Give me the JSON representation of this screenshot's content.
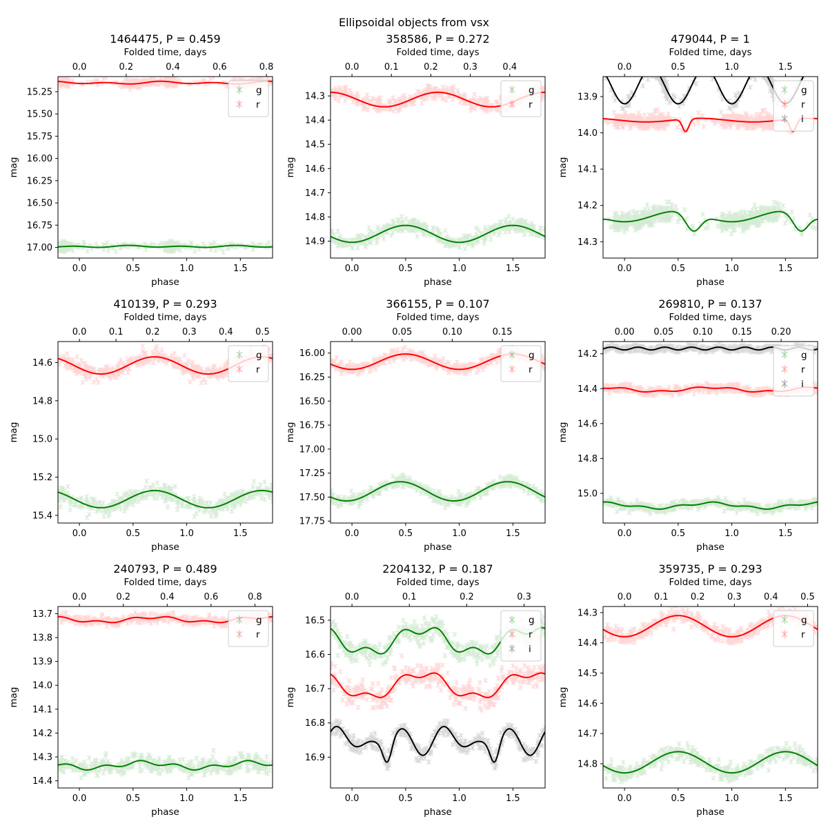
{
  "figure": {
    "title": "Ellipsoidal objects from vsx"
  },
  "chart_data": [
    {
      "type": "scatter",
      "title": "1464475, P = 0.459",
      "xlabel": "phase",
      "ylabel": "mag",
      "top_xlabel": "Folded time, days",
      "period": 0.459,
      "xlim": [
        -0.2,
        1.8
      ],
      "ylim": [
        17.12,
        15.08
      ],
      "yaxis": "inverted",
      "yticks": [
        15.25,
        15.5,
        15.75,
        16.0,
        16.25,
        16.5,
        16.75,
        17.0
      ],
      "ytick_labels": [
        "15.25",
        "15.50",
        "15.75",
        "16.00",
        "16.25",
        "16.50",
        "16.75",
        "17.00"
      ],
      "xticks": [
        0.0,
        0.5,
        1.0,
        1.5
      ],
      "xtick_labels": [
        "0.0",
        "0.5",
        "1.0",
        "1.5"
      ],
      "top_xticks": [
        0.0,
        0.2,
        0.4,
        0.6,
        0.8
      ],
      "top_xtick_labels": [
        "0.0",
        "0.2",
        "0.4",
        "0.6",
        "0.8"
      ],
      "legend": {
        "position": "top-right",
        "entries": [
          "g",
          "r"
        ]
      },
      "series": [
        {
          "name": "g",
          "color": "#008000",
          "mean": 16.99,
          "terms": [
            [
              0.005,
              1,
              0.0
            ],
            [
              0.008,
              2,
              1.2
            ]
          ],
          "noise": 0.02,
          "clusters": [
            [
              -0.2,
              -0.12,
              0.45
            ],
            [
              0.8,
              0.92,
              0.45
            ]
          ]
        },
        {
          "name": "r",
          "color": "#ff0000",
          "mean": 15.15,
          "terms": [
            [
              0.008,
              1,
              0.3
            ],
            [
              0.01,
              2,
              2.0
            ]
          ],
          "noise": 0.02,
          "clusters": [
            [
              0.42,
              0.7,
              0.55
            ],
            [
              -0.2,
              -0.1,
              0.4
            ]
          ]
        }
      ]
    },
    {
      "type": "scatter",
      "title": "358586, P = 0.272",
      "xlabel": "phase",
      "ylabel": "mag",
      "top_xlabel": "Folded time, days",
      "period": 0.272,
      "xlim": [
        -0.2,
        1.8
      ],
      "ylim": [
        14.97,
        14.22
      ],
      "yaxis": "inverted",
      "yticks": [
        14.3,
        14.4,
        14.5,
        14.6,
        14.7,
        14.8,
        14.9
      ],
      "ytick_labels": [
        "14.3",
        "14.4",
        "14.5",
        "14.6",
        "14.7",
        "14.8",
        "14.9"
      ],
      "xticks": [
        0.0,
        0.5,
        1.0,
        1.5
      ],
      "xtick_labels": [
        "0.0",
        "0.5",
        "1.0",
        "1.5"
      ],
      "top_xticks": [
        0.0,
        0.1,
        0.2,
        0.3,
        0.4
      ],
      "top_xtick_labels": [
        "0.0",
        "0.1",
        "0.2",
        "0.3",
        "0.4"
      ],
      "legend": {
        "position": "top-right",
        "entries": [
          "g",
          "r"
        ]
      },
      "series": [
        {
          "name": "g",
          "color": "#008000",
          "mean": 14.87,
          "terms": [
            [
              0.035,
              1,
              0.0
            ]
          ],
          "noise": 0.015,
          "clusters": []
        },
        {
          "name": "r",
          "color": "#ff0000",
          "mean": 14.315,
          "terms": [
            [
              0.03,
              1,
              0.3
            ]
          ],
          "noise": 0.015,
          "clusters": []
        }
      ]
    },
    {
      "type": "scatter",
      "title": "479044, P = 1",
      "xlabel": "phase",
      "ylabel": "mag",
      "top_xlabel": "Folded time, days",
      "period": 1,
      "xlim": [
        -0.2,
        1.8
      ],
      "ylim": [
        14.345,
        13.845
      ],
      "yaxis": "inverted",
      "yticks": [
        13.9,
        14.0,
        14.1,
        14.2,
        14.3
      ],
      "ytick_labels": [
        "13.9",
        "14.0",
        "14.1",
        "14.2",
        "14.3"
      ],
      "xticks": [
        0.0,
        0.5,
        1.0,
        1.5
      ],
      "xtick_labels": [
        "0.0",
        "0.5",
        "1.0",
        "1.5"
      ],
      "top_xticks": [
        0.0,
        0.5,
        1.0,
        1.5
      ],
      "top_xtick_labels": [
        "0.0",
        "0.5",
        "1.0",
        "1.5"
      ],
      "legend": {
        "position": "top-right",
        "entries": [
          "g",
          "r",
          "i"
        ]
      },
      "series": [
        {
          "name": "g",
          "color": "#008000",
          "mean": 14.23,
          "terms": [
            [
              0.015,
              1,
              0.0
            ]
          ],
          "dips": [
            [
              0.64,
              0.07,
              0.05
            ]
          ],
          "noise": 0.012,
          "clusters": [
            [
              -0.1,
              0.42,
              0.95
            ]
          ]
        },
        {
          "name": "r",
          "color": "#ff0000",
          "mean": 13.965,
          "terms": [
            [
              0.005,
              1,
              0.2
            ]
          ],
          "dips": [
            [
              0.57,
              0.03,
              0.035
            ]
          ],
          "noise": 0.01,
          "clusters": [
            [
              -0.1,
              0.42,
              0.95
            ]
          ]
        },
        {
          "name": "i",
          "color": "#000000",
          "mean": 13.87,
          "terms": [
            [
              0.05,
              2,
              0.5
            ]
          ],
          "noise": 0.01,
          "clusters": [
            [
              0.18,
              0.4,
              1.0
            ]
          ]
        }
      ]
    },
    {
      "type": "scatter",
      "title": "410139, P = 0.293",
      "xlabel": "phase",
      "ylabel": "mag",
      "top_xlabel": "Folded time, days",
      "period": 0.293,
      "xlim": [
        -0.2,
        1.8
      ],
      "ylim": [
        15.44,
        14.49
      ],
      "yaxis": "inverted",
      "yticks": [
        14.6,
        14.8,
        15.0,
        15.2,
        15.4
      ],
      "ytick_labels": [
        "14.6",
        "14.8",
        "15.0",
        "15.2",
        "15.4"
      ],
      "xticks": [
        0.0,
        0.5,
        1.0,
        1.5
      ],
      "xtick_labels": [
        "0.0",
        "0.5",
        "1.0",
        "1.5"
      ],
      "top_xticks": [
        0.0,
        0.1,
        0.2,
        0.3,
        0.4,
        0.5
      ],
      "top_xtick_labels": [
        "0.0",
        "0.1",
        "0.2",
        "0.3",
        "0.4",
        "0.5"
      ],
      "legend": {
        "position": "top-right",
        "entries": [
          "g",
          "r"
        ]
      },
      "series": [
        {
          "name": "g",
          "color": "#008000",
          "mean": 15.315,
          "terms": [
            [
              0.045,
              1,
              0.2
            ]
          ],
          "noise": 0.02,
          "clusters": []
        },
        {
          "name": "r",
          "color": "#ff0000",
          "mean": 14.615,
          "terms": [
            [
              0.045,
              1,
              0.2
            ]
          ],
          "noise": 0.02,
          "clusters": []
        }
      ]
    },
    {
      "type": "scatter",
      "title": "366155, P = 0.107",
      "xlabel": "phase",
      "ylabel": "mag",
      "top_xlabel": "Folded time, days",
      "period": 0.107,
      "xlim": [
        -0.2,
        1.8
      ],
      "ylim": [
        17.77,
        15.88
      ],
      "yaxis": "inverted",
      "yticks": [
        16.0,
        16.25,
        16.5,
        16.75,
        17.0,
        17.25,
        17.5,
        17.75
      ],
      "ytick_labels": [
        "16.00",
        "16.25",
        "16.50",
        "16.75",
        "17.00",
        "17.25",
        "17.50",
        "17.75"
      ],
      "xticks": [
        0.0,
        0.5,
        1.0,
        1.5
      ],
      "xtick_labels": [
        "0.0",
        "0.5",
        "1.0",
        "1.5"
      ],
      "top_xticks": [
        0.0,
        0.05,
        0.1,
        0.15
      ],
      "top_xtick_labels": [
        "0.00",
        "0.05",
        "0.10",
        "0.15"
      ],
      "legend": {
        "position": "top-right",
        "entries": [
          "g",
          "r"
        ]
      },
      "series": [
        {
          "name": "g",
          "color": "#008000",
          "mean": 17.44,
          "terms": [
            [
              0.1,
              1,
              -0.05
            ]
          ],
          "noise": 0.03,
          "clusters": []
        },
        {
          "name": "r",
          "color": "#ff0000",
          "mean": 16.09,
          "terms": [
            [
              0.08,
              1,
              0.0
            ]
          ],
          "noise": 0.025,
          "clusters": []
        }
      ]
    },
    {
      "type": "scatter",
      "title": "269810, P = 0.137",
      "xlabel": "phase",
      "ylabel": "mag",
      "top_xlabel": "Folded time, days",
      "period": 0.137,
      "xlim": [
        -0.2,
        1.8
      ],
      "ylim": [
        15.17,
        14.13
      ],
      "yaxis": "inverted",
      "yticks": [
        14.2,
        14.4,
        14.6,
        14.8,
        15.0
      ],
      "ytick_labels": [
        "14.2",
        "14.4",
        "14.6",
        "14.8",
        "15.0"
      ],
      "xticks": [
        0.0,
        0.5,
        1.0,
        1.5
      ],
      "xtick_labels": [
        "0.0",
        "0.5",
        "1.0",
        "1.5"
      ],
      "top_xticks": [
        0.0,
        0.05,
        0.1,
        0.15,
        0.2
      ],
      "top_xtick_labels": [
        "0.00",
        "0.05",
        "0.10",
        "0.15",
        "0.20"
      ],
      "legend": {
        "position": "top-right",
        "entries": [
          "g",
          "r",
          "i"
        ]
      },
      "series": [
        {
          "name": "g",
          "color": "#008000",
          "mean": 15.07,
          "terms": [
            [
              0.015,
              1,
              0.3
            ],
            [
              0.006,
              3,
              0.0
            ]
          ],
          "noise": 0.012,
          "clusters": []
        },
        {
          "name": "r",
          "color": "#ff0000",
          "mean": 14.405,
          "terms": [
            [
              0.012,
              1,
              0.3
            ],
            [
              0.005,
              3,
              0.5
            ]
          ],
          "noise": 0.012,
          "clusters": []
        },
        {
          "name": "i",
          "color": "#000000",
          "mean": 14.17,
          "terms": [
            [
              0.008,
              4,
              0.0
            ]
          ],
          "noise": 0.008,
          "clusters": []
        }
      ]
    },
    {
      "type": "scatter",
      "title": "240793, P = 0.489",
      "xlabel": "phase",
      "ylabel": "mag",
      "top_xlabel": "Folded time, days",
      "period": 0.489,
      "xlim": [
        -0.2,
        1.8
      ],
      "ylim": [
        14.43,
        13.67
      ],
      "yaxis": "inverted",
      "yticks": [
        13.7,
        13.8,
        13.9,
        14.0,
        14.1,
        14.2,
        14.3,
        14.4
      ],
      "ytick_labels": [
        "13.7",
        "13.8",
        "13.9",
        "14.0",
        "14.1",
        "14.2",
        "14.3",
        "14.4"
      ],
      "xticks": [
        0.0,
        0.5,
        1.0,
        1.5
      ],
      "xtick_labels": [
        "0.0",
        "0.5",
        "1.0",
        "1.5"
      ],
      "top_xticks": [
        0.0,
        0.2,
        0.4,
        0.6,
        0.8
      ],
      "top_xtick_labels": [
        "0.0",
        "0.2",
        "0.4",
        "0.6",
        "0.8"
      ],
      "legend": {
        "position": "top-right",
        "entries": [
          "g",
          "r"
        ]
      },
      "series": [
        {
          "name": "g",
          "color": "#008000",
          "mean": 14.335,
          "terms": [
            [
              0.012,
              1,
              0.1
            ],
            [
              0.008,
              3,
              0.4
            ]
          ],
          "noise": 0.018,
          "clusters": []
        },
        {
          "name": "r",
          "color": "#ff0000",
          "mean": 13.725,
          "terms": [
            [
              0.01,
              1,
              0.2
            ],
            [
              0.005,
              3,
              0.0
            ]
          ],
          "noise": 0.01,
          "clusters": []
        }
      ]
    },
    {
      "type": "scatter",
      "title": "2204132, P = 0.187",
      "xlabel": "phase",
      "ylabel": "mag",
      "top_xlabel": "Folded time, days",
      "period": 0.187,
      "xlim": [
        -0.2,
        1.8
      ],
      "ylim": [
        16.99,
        16.46
      ],
      "yaxis": "inverted",
      "yticks": [
        16.5,
        16.6,
        16.7,
        16.8,
        16.9
      ],
      "ytick_labels": [
        "16.5",
        "16.6",
        "16.7",
        "16.8",
        "16.9"
      ],
      "xticks": [
        0.0,
        0.5,
        1.0,
        1.5
      ],
      "xtick_labels": [
        "0.0",
        "0.5",
        "1.0",
        "1.5"
      ],
      "top_xticks": [
        0.0,
        0.1,
        0.2,
        0.3
      ],
      "top_xtick_labels": [
        "0.0",
        "0.1",
        "0.2",
        "0.3"
      ],
      "legend": {
        "position": "top-right",
        "entries": [
          "g",
          "r",
          "i"
        ]
      },
      "series": [
        {
          "name": "g",
          "color": "#008000",
          "mean": 16.56,
          "terms": [
            [
              0.035,
              1,
              0.15
            ],
            [
              0.015,
              3,
              0.3
            ]
          ],
          "noise": 0.015,
          "clusters": []
        },
        {
          "name": "r",
          "color": "#ff0000",
          "mean": 16.69,
          "terms": [
            [
              0.035,
              1,
              0.15
            ],
            [
              0.012,
              3,
              0.3
            ]
          ],
          "noise": 0.018,
          "clusters": []
        },
        {
          "name": "i",
          "color": "#000000",
          "mean": 16.85,
          "terms": [
            [
              0.025,
              2,
              0.15
            ],
            [
              0.02,
              3,
              0.0
            ]
          ],
          "dips": [
            [
              0.33,
              0.04,
              0.06
            ]
          ],
          "noise": 0.012,
          "clusters": []
        }
      ]
    },
    {
      "type": "scatter",
      "title": "359735, P = 0.293",
      "xlabel": "phase",
      "ylabel": "mag",
      "top_xlabel": "Folded time, days",
      "period": 0.293,
      "xlim": [
        -0.2,
        1.8
      ],
      "ylim": [
        14.88,
        14.28
      ],
      "yaxis": "inverted",
      "yticks": [
        14.3,
        14.4,
        14.5,
        14.6,
        14.7,
        14.8
      ],
      "ytick_labels": [
        "14.3",
        "14.4",
        "14.5",
        "14.6",
        "14.7",
        "14.8"
      ],
      "xticks": [
        0.0,
        0.5,
        1.0,
        1.5
      ],
      "xtick_labels": [
        "0.0",
        "0.5",
        "1.0",
        "1.5"
      ],
      "top_xticks": [
        0.0,
        0.1,
        0.2,
        0.3,
        0.4,
        0.5
      ],
      "top_xtick_labels": [
        "0.0",
        "0.1",
        "0.2",
        "0.3",
        "0.4",
        "0.5"
      ],
      "legend": {
        "position": "top-right",
        "entries": [
          "g",
          "r"
        ]
      },
      "series": [
        {
          "name": "g",
          "color": "#008000",
          "mean": 14.795,
          "terms": [
            [
              0.035,
              1,
              0.0
            ]
          ],
          "noise": 0.012,
          "clusters": []
        },
        {
          "name": "r",
          "color": "#ff0000",
          "mean": 14.345,
          "terms": [
            [
              0.035,
              1,
              0.0
            ]
          ],
          "noise": 0.012,
          "clusters": []
        }
      ]
    }
  ]
}
